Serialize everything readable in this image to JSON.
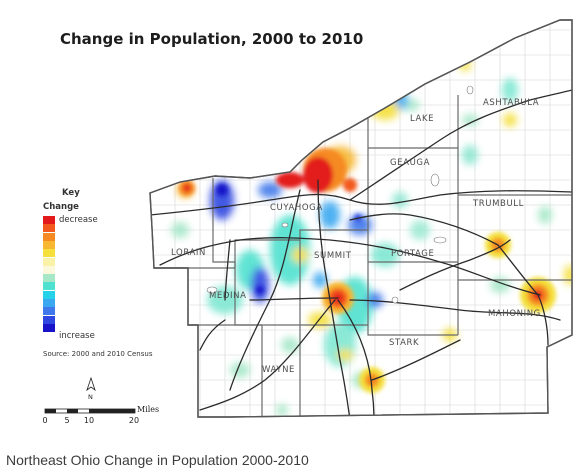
{
  "map": {
    "title": "Change in Population, 2000 to 2010",
    "counties": [
      {
        "name": "ASHTABULA"
      },
      {
        "name": "LAKE"
      },
      {
        "name": "GEAUGA"
      },
      {
        "name": "TRUMBULL"
      },
      {
        "name": "CUYAHOGA"
      },
      {
        "name": "LORAIN"
      },
      {
        "name": "SUMMIT"
      },
      {
        "name": "PORTAGE"
      },
      {
        "name": "MEDINA"
      },
      {
        "name": "MAHONING"
      },
      {
        "name": "STARK"
      },
      {
        "name": "WAYNE"
      }
    ],
    "legend": {
      "title": "Key",
      "subtitle": "Change",
      "high_label": "decrease",
      "low_label": "increase",
      "colors": [
        "#e31a1c",
        "#f25a1e",
        "#f58a23",
        "#f7b733",
        "#f4df3b",
        "#f9f2a8",
        "#fbf8dc",
        "#a6e7c8",
        "#4fe1cf",
        "#26d2e8",
        "#3aa8f0",
        "#3f78ea",
        "#2d47e0",
        "#1812c9"
      ]
    },
    "source": "Source: 2000 and 2010 Census",
    "north_arrow_label": "N",
    "scale": {
      "unit": "Miles",
      "ticks": [
        "0",
        "5",
        "10",
        "20"
      ]
    }
  },
  "caption": "Northeast Ohio Change in Population 2000-2010"
}
